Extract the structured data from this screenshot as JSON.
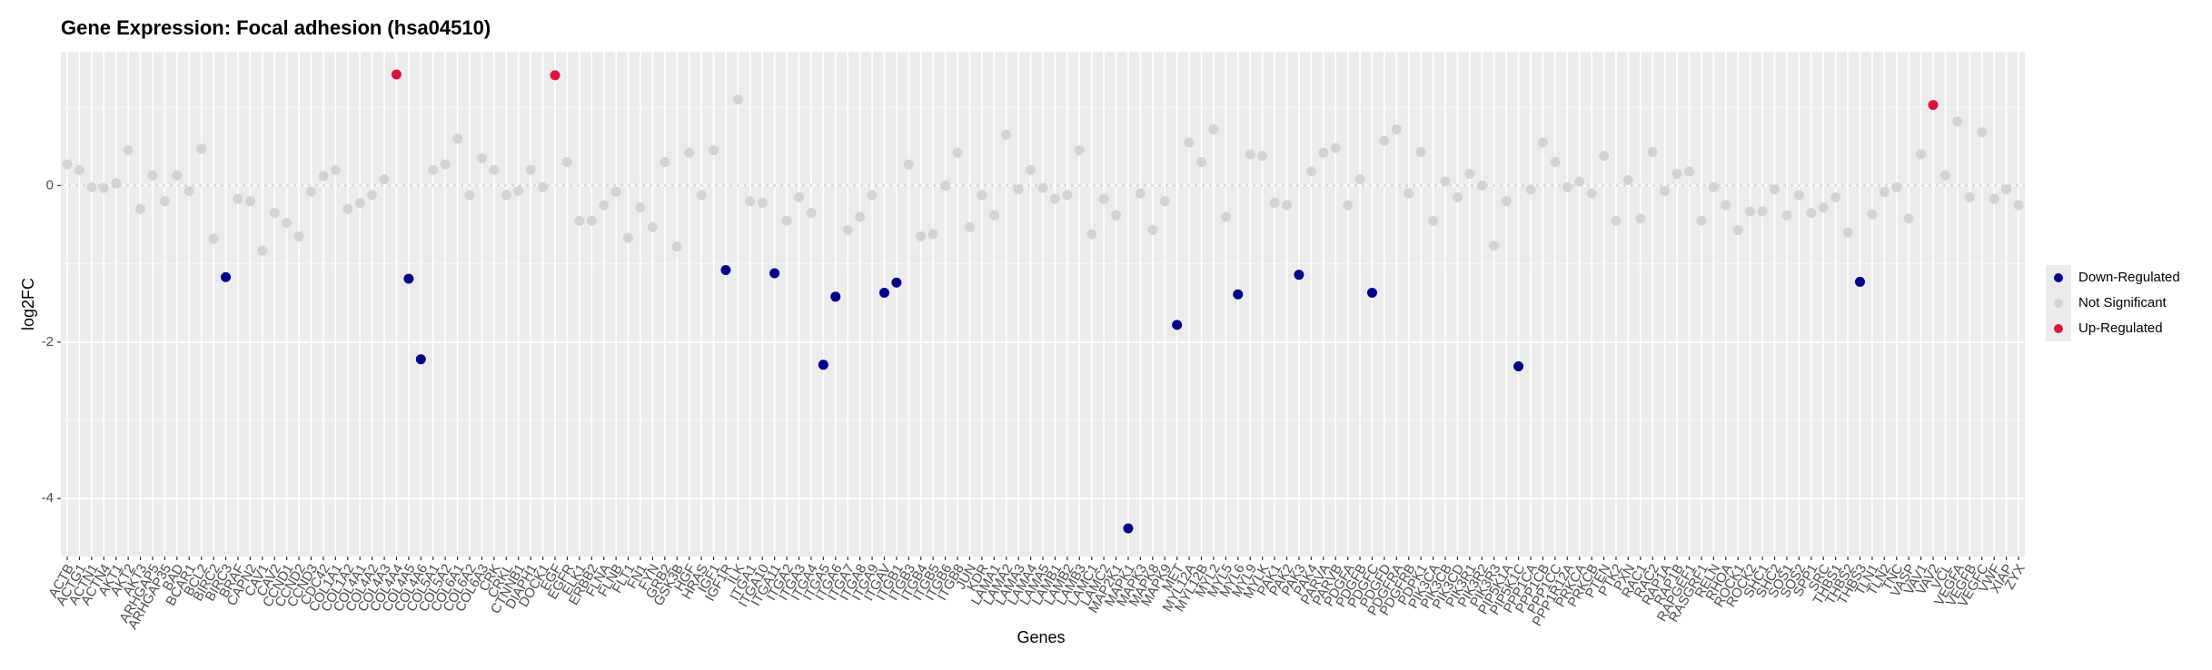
{
  "chart_data": {
    "type": "scatter",
    "title": "Gene Expression: Focal adhesion (hsa04510)",
    "x_label": "Genes",
    "y_label": "log2FC",
    "categories": [
      "ACTB",
      "ACTG1",
      "ACTN1",
      "ACTN4",
      "AKT1",
      "AKT2",
      "AKT3",
      "ARHGAP5",
      "ARHGAP35",
      "BAD",
      "BCAR1",
      "BCL2",
      "BIRC2",
      "BIRC3",
      "BRAF",
      "CAPN2",
      "CAV1",
      "CAV2",
      "CCND1",
      "CCND2",
      "CCND3",
      "CDC42",
      "COL1A1",
      "COL1A2",
      "COL4A1",
      "COL4A2",
      "COL4A3",
      "COL4A4",
      "COL4A5",
      "COL4A6",
      "COL5A1",
      "COL5A2",
      "COL6A1",
      "COL6A2",
      "COL6A3",
      "CRK",
      "CRKL",
      "CTNNB1",
      "DIAPH1",
      "DOCK1",
      "EGF",
      "EGFR",
      "ELK1",
      "ERBB2",
      "FLNA",
      "FLNB",
      "FLT1",
      "FN1",
      "FYN",
      "GRB2",
      "GSK3B",
      "HGF",
      "HRAS",
      "IGF1",
      "IGF1R",
      "ILK",
      "ITGA1",
      "ITGA10",
      "ITGA11",
      "ITGA2",
      "ITGA3",
      "ITGA4",
      "ITGA5",
      "ITGA6",
      "ITGA7",
      "ITGA8",
      "ITGA9",
      "ITGAV",
      "ITGB1",
      "ITGB3",
      "ITGB4",
      "ITGB5",
      "ITGB6",
      "ITGB8",
      "JUN",
      "KDR",
      "LAMA1",
      "LAMA2",
      "LAMA3",
      "LAMA4",
      "LAMA5",
      "LAMB1",
      "LAMB2",
      "LAMB3",
      "LAMC1",
      "LAMC2",
      "MAP2K1",
      "MAPK1",
      "MAPK3",
      "MAPK8",
      "MAPK9",
      "MET",
      "MYL12A",
      "MYL12B",
      "MYL2",
      "MYL5",
      "MYL6",
      "MYL9",
      "MYLK",
      "PAK1",
      "PAK2",
      "PAK3",
      "PAK4",
      "PARVA",
      "PARVB",
      "PDGFA",
      "PDGFB",
      "PDGFC",
      "PDGFD",
      "PDGFRA",
      "PDGFRB",
      "PDPK1",
      "PIK3CA",
      "PIK3CB",
      "PIK3CD",
      "PIK3R1",
      "PIK3R2",
      "PIK3R3",
      "PIP5K1A",
      "PIP5K1C",
      "PPP1CA",
      "PPP1CB",
      "PPP1CC",
      "PPP1R12A",
      "PRKCA",
      "PRKCB",
      "PTEN",
      "PTK2",
      "PXN",
      "RAC1",
      "RAC2",
      "RAP1A",
      "RAP1B",
      "RAPGEF1",
      "RASGRF1",
      "RELN",
      "RHOA",
      "ROCK1",
      "ROCK2",
      "SHC1",
      "SHC2",
      "SOS1",
      "SOS2",
      "SPP1",
      "SRC",
      "THBS1",
      "THBS2",
      "THBS3",
      "TLN1",
      "TLN2",
      "TNC",
      "VASP",
      "VAV1",
      "VAV2",
      "VCL",
      "VEGFA",
      "VEGFB",
      "VEGFC",
      "VWF",
      "XIAP",
      "ZYX"
    ],
    "series": [
      {
        "name": "Down-Regulated",
        "color": "#00008b",
        "values": [
          null,
          null,
          null,
          null,
          null,
          null,
          null,
          null,
          null,
          null,
          null,
          null,
          null,
          -1.17,
          null,
          null,
          null,
          null,
          null,
          null,
          null,
          null,
          null,
          null,
          null,
          null,
          null,
          null,
          -1.19,
          -2.22,
          null,
          null,
          null,
          null,
          null,
          null,
          null,
          null,
          null,
          null,
          null,
          null,
          null,
          null,
          null,
          null,
          null,
          null,
          null,
          null,
          null,
          null,
          null,
          null,
          -1.08,
          null,
          null,
          null,
          -1.12,
          null,
          null,
          null,
          -2.29,
          -1.42,
          null,
          null,
          null,
          -1.37,
          -1.24,
          null,
          null,
          null,
          null,
          null,
          null,
          null,
          null,
          null,
          null,
          null,
          null,
          null,
          null,
          null,
          null,
          null,
          null,
          -4.38,
          null,
          null,
          null,
          -1.78,
          null,
          null,
          null,
          null,
          -1.39,
          null,
          null,
          null,
          null,
          -1.14,
          null,
          null,
          null,
          null,
          null,
          -1.37,
          null,
          null,
          null,
          null,
          null,
          null,
          null,
          null,
          null,
          null,
          null,
          -2.31,
          null,
          null,
          null,
          null,
          null,
          null,
          null,
          null,
          null,
          null,
          null,
          null,
          null,
          null,
          null,
          null,
          null,
          null,
          null,
          null,
          null,
          null,
          null,
          null,
          null,
          null,
          null,
          -1.23,
          null,
          null,
          null,
          null,
          null,
          null,
          null,
          null,
          null,
          null,
          null,
          null,
          null
        ]
      },
      {
        "name": "Not Significant",
        "color": "#d3d3d3",
        "values": [
          0.27,
          0.2,
          -0.02,
          -0.03,
          0.03,
          0.45,
          -0.3,
          0.13,
          -0.2,
          0.13,
          -0.07,
          0.47,
          -0.68,
          null,
          -0.17,
          -0.2,
          -0.83,
          -0.35,
          -0.48,
          -0.65,
          -0.08,
          0.12,
          0.2,
          -0.3,
          -0.22,
          -0.12,
          0.08,
          null,
          null,
          null,
          0.2,
          0.27,
          0.6,
          -0.12,
          0.35,
          0.2,
          -0.12,
          -0.07,
          0.2,
          -0.02,
          null,
          0.3,
          -0.45,
          -0.45,
          -0.25,
          -0.08,
          -0.67,
          -0.28,
          -0.53,
          0.3,
          -0.78,
          0.42,
          -0.12,
          0.45,
          null,
          1.1,
          -0.2,
          -0.22,
          null,
          -0.45,
          -0.15,
          -0.35,
          null,
          null,
          -0.57,
          -0.4,
          -0.12,
          null,
          null,
          0.27,
          -0.65,
          -0.62,
          0,
          0.42,
          -0.53,
          -0.12,
          -0.38,
          0.65,
          -0.05,
          0.2,
          -0.03,
          -0.17,
          -0.12,
          0.45,
          -0.62,
          -0.17,
          -0.38,
          null,
          -0.1,
          -0.57,
          -0.2,
          null,
          0.55,
          0.3,
          0.72,
          -0.4,
          null,
          0.4,
          0.38,
          -0.22,
          -0.25,
          null,
          0.18,
          0.42,
          0.48,
          -0.25,
          0.08,
          null,
          0.57,
          0.72,
          -0.1,
          0.43,
          -0.45,
          0.05,
          -0.15,
          0.15,
          0,
          -0.77,
          -0.2,
          null,
          -0.05,
          0.55,
          0.3,
          -0.02,
          0.05,
          -0.1,
          0.38,
          -0.45,
          0.07,
          -0.42,
          0.43,
          -0.07,
          0.15,
          0.18,
          -0.45,
          -0.02,
          -0.25,
          -0.57,
          -0.33,
          -0.33,
          -0.05,
          -0.38,
          -0.12,
          -0.35,
          -0.28,
          -0.15,
          -0.6,
          null,
          -0.37,
          -0.08,
          -0.02,
          -0.42,
          0.4,
          null,
          0.13,
          0.82,
          -0.15,
          0.68,
          -0.17,
          -0.05,
          -0.25
        ]
      },
      {
        "name": "Up-Regulated",
        "color": "#dc143c",
        "values": [
          null,
          null,
          null,
          null,
          null,
          null,
          null,
          null,
          null,
          null,
          null,
          null,
          null,
          null,
          null,
          null,
          null,
          null,
          null,
          null,
          null,
          null,
          null,
          null,
          null,
          null,
          null,
          1.42,
          null,
          null,
          null,
          null,
          null,
          null,
          null,
          null,
          null,
          null,
          null,
          null,
          1.41,
          null,
          null,
          null,
          null,
          null,
          null,
          null,
          null,
          null,
          null,
          null,
          null,
          null,
          null,
          null,
          null,
          null,
          null,
          null,
          null,
          null,
          null,
          null,
          null,
          null,
          null,
          null,
          null,
          null,
          null,
          null,
          null,
          null,
          null,
          null,
          null,
          null,
          null,
          null,
          null,
          null,
          null,
          null,
          null,
          null,
          null,
          null,
          null,
          null,
          null,
          null,
          null,
          null,
          null,
          null,
          null,
          null,
          null,
          null,
          null,
          null,
          null,
          null,
          null,
          null,
          null,
          null,
          null,
          null,
          null,
          null,
          null,
          null,
          null,
          null,
          null,
          null,
          null,
          null,
          null,
          null,
          null,
          null,
          null,
          null,
          null,
          null,
          null,
          null,
          null,
          null,
          null,
          null,
          null,
          null,
          null,
          null,
          null,
          null,
          null,
          null,
          null,
          null,
          null,
          null,
          null,
          null,
          null,
          null,
          null,
          null,
          null,
          1.03,
          null,
          null,
          null,
          null,
          null,
          null,
          null
        ]
      }
    ],
    "ylim": [
      -4.74,
      1.71
    ],
    "yticks": [
      0,
      -2,
      -4
    ],
    "reference_line": 0,
    "grid": true,
    "legend": "right"
  }
}
